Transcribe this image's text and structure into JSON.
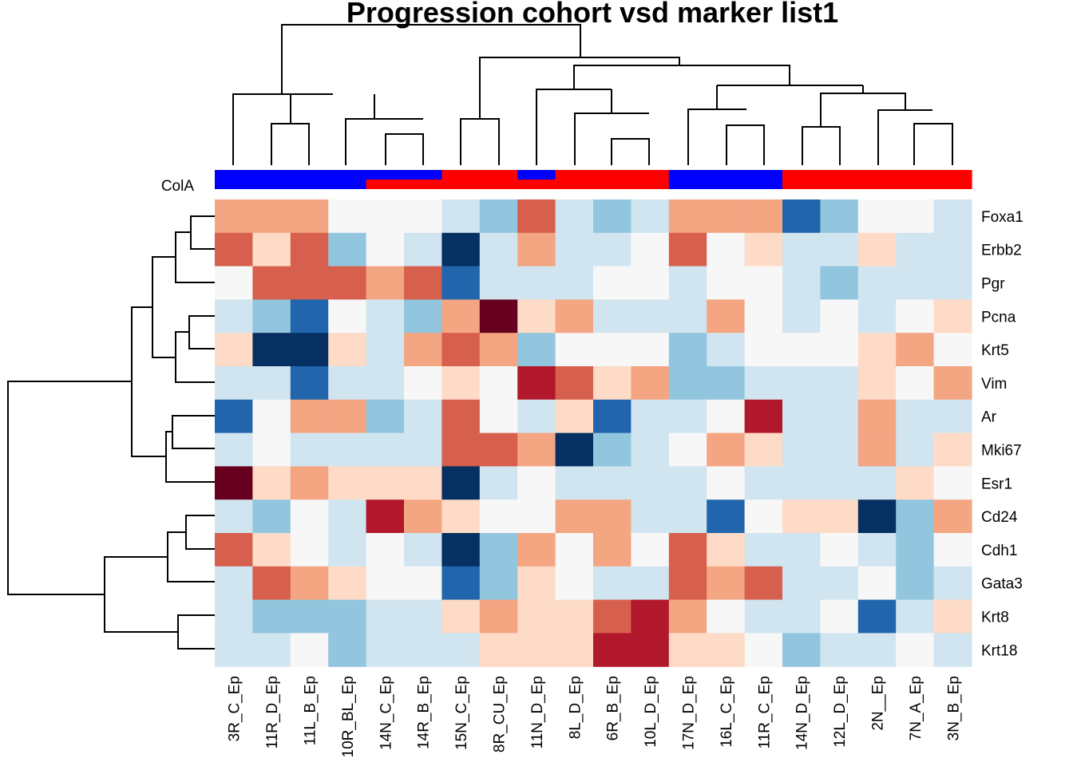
{
  "chart_data": {
    "type": "heatmap",
    "title": "Progression cohort vsd marker list1",
    "annotation_label": "ColA",
    "colors": {
      "annotation_blue": "#0000ff",
      "annotation_red": "#ff0000",
      "scale": [
        "#053061",
        "#2166ac",
        "#4393c3",
        "#92c5de",
        "#d1e5f0",
        "#f7f7f7",
        "#fddbc7",
        "#f4a582",
        "#d6604d",
        "#b2182b",
        "#67001f"
      ]
    },
    "columns": [
      "3R_C_Ep",
      "11R_D_Ep",
      "11L_B_Ep",
      "10R_BL_Ep",
      "14N_C_Ep",
      "14R_B_Ep",
      "15N_C_Ep",
      "8R_CU_Ep",
      "11N_D_Ep",
      "8L_D_Ep",
      "6R_B_Ep",
      "10L_D_Ep",
      "17N_D_Ep",
      "16L_C_Ep",
      "11R_C_Ep",
      "14N_D_Ep",
      "12L_D_Ep",
      "2N__Ep",
      "7N_A_Ep",
      "3N_B_Ep"
    ],
    "rows": [
      "Foxa1",
      "Erbb2",
      "Pgr",
      "Pcna",
      "Krt5",
      "Vim",
      "Ar",
      "Mki67",
      "Esr1",
      "Cd24",
      "Cdh1",
      "Gata3",
      "Krt8",
      "Krt18"
    ],
    "values": [
      [
        1.5,
        1.5,
        1.5,
        0,
        0,
        0,
        -1,
        -2,
        2,
        -1,
        -2,
        -1,
        1.5,
        1.5,
        1.5,
        -3,
        -2,
        0,
        0,
        -1
      ],
      [
        2,
        0.5,
        2,
        -2,
        0,
        -0.5,
        -4,
        -0.5,
        1.5,
        -1,
        -0.5,
        0,
        2,
        0,
        0.5,
        -1,
        -1,
        0.5,
        -0.5,
        -1
      ],
      [
        0,
        2,
        2,
        2,
        1.5,
        2,
        -3,
        -1,
        -0.5,
        -0.5,
        0,
        0,
        -1,
        0,
        0,
        -0.5,
        -2,
        -1,
        -0.5,
        -0.5
      ],
      [
        -1,
        -2,
        -3,
        0,
        -0.5,
        -2,
        1.5,
        4,
        0.5,
        1.5,
        -1,
        -1,
        -0.5,
        1.5,
        0,
        -0.5,
        0,
        -0.5,
        0,
        0.5
      ],
      [
        0.5,
        -4,
        -4,
        0.5,
        -0.5,
        1.5,
        2,
        1.5,
        -2,
        0,
        0,
        0,
        -2,
        -0.5,
        0,
        0,
        0,
        0.5,
        1.5,
        0
      ],
      [
        -1,
        -0.5,
        -3,
        -1,
        -0.5,
        0,
        0.5,
        0,
        3,
        2,
        0.5,
        1.5,
        -2,
        -2,
        -0.5,
        -1,
        -0.5,
        0.5,
        0,
        1.5
      ],
      [
        -3,
        0,
        1.5,
        1.5,
        -2,
        -0.5,
        2,
        0,
        -1,
        0.5,
        -3,
        -0.5,
        -0.5,
        0,
        3,
        -0.5,
        -0.5,
        1.5,
        -0.5,
        -0.5
      ],
      [
        -1,
        0,
        -0.5,
        -0.5,
        -1,
        -1,
        2,
        2,
        1.5,
        -4,
        -2,
        -0.5,
        0,
        1.5,
        0.5,
        -0.5,
        -1,
        1.5,
        -0.5,
        0.5
      ],
      [
        4,
        0.5,
        1.5,
        0.5,
        0.5,
        0.5,
        -4,
        -1,
        0,
        -0.5,
        -0.5,
        -1,
        -0.5,
        0,
        -0.5,
        -1,
        -1,
        -0.5,
        0.5,
        0
      ],
      [
        -1,
        -2,
        0,
        -0.5,
        3,
        1.5,
        0.5,
        0,
        0,
        1.5,
        1.5,
        -0.5,
        -0.5,
        -3,
        0,
        0.5,
        0.5,
        -4,
        -2,
        1.5
      ],
      [
        2,
        0.5,
        0,
        -1,
        0,
        -0.5,
        -4,
        -2,
        1.5,
        0,
        1.5,
        0,
        2,
        0.5,
        -1,
        -1,
        0,
        -1,
        -2,
        0
      ],
      [
        -0.5,
        2,
        1.5,
        0.5,
        0,
        0,
        -3,
        -2,
        0.5,
        0,
        -1,
        -1,
        2,
        1.5,
        2,
        -0.5,
        -1,
        0,
        -2,
        -1
      ],
      [
        -0.5,
        -2,
        -2,
        -2,
        -0.5,
        -1,
        0.5,
        1.5,
        0.5,
        0.5,
        2,
        3,
        1.5,
        0,
        -0.5,
        -0.5,
        0,
        -3,
        -0.5,
        0.5
      ],
      [
        -0.5,
        -1,
        0,
        -2,
        -1,
        -0.5,
        -0.5,
        0.5,
        0.5,
        0.5,
        3,
        3,
        0.5,
        0.5,
        0,
        -2,
        -1,
        -0.5,
        0,
        -1
      ]
    ],
    "annotation_top": [
      "blue",
      "blue",
      "blue",
      "blue",
      "blue",
      "blue",
      "red",
      "red",
      "blue",
      "red",
      "red",
      "red",
      "blue",
      "blue",
      "blue",
      "red",
      "red",
      "red",
      "red",
      "red"
    ],
    "annotation_bottom": [
      "blue",
      "blue",
      "blue",
      "blue",
      "red",
      "red",
      "red",
      "red",
      "red",
      "red",
      "red",
      "red",
      "blue",
      "blue",
      "blue",
      "red",
      "red",
      "red",
      "red",
      "red"
    ]
  }
}
